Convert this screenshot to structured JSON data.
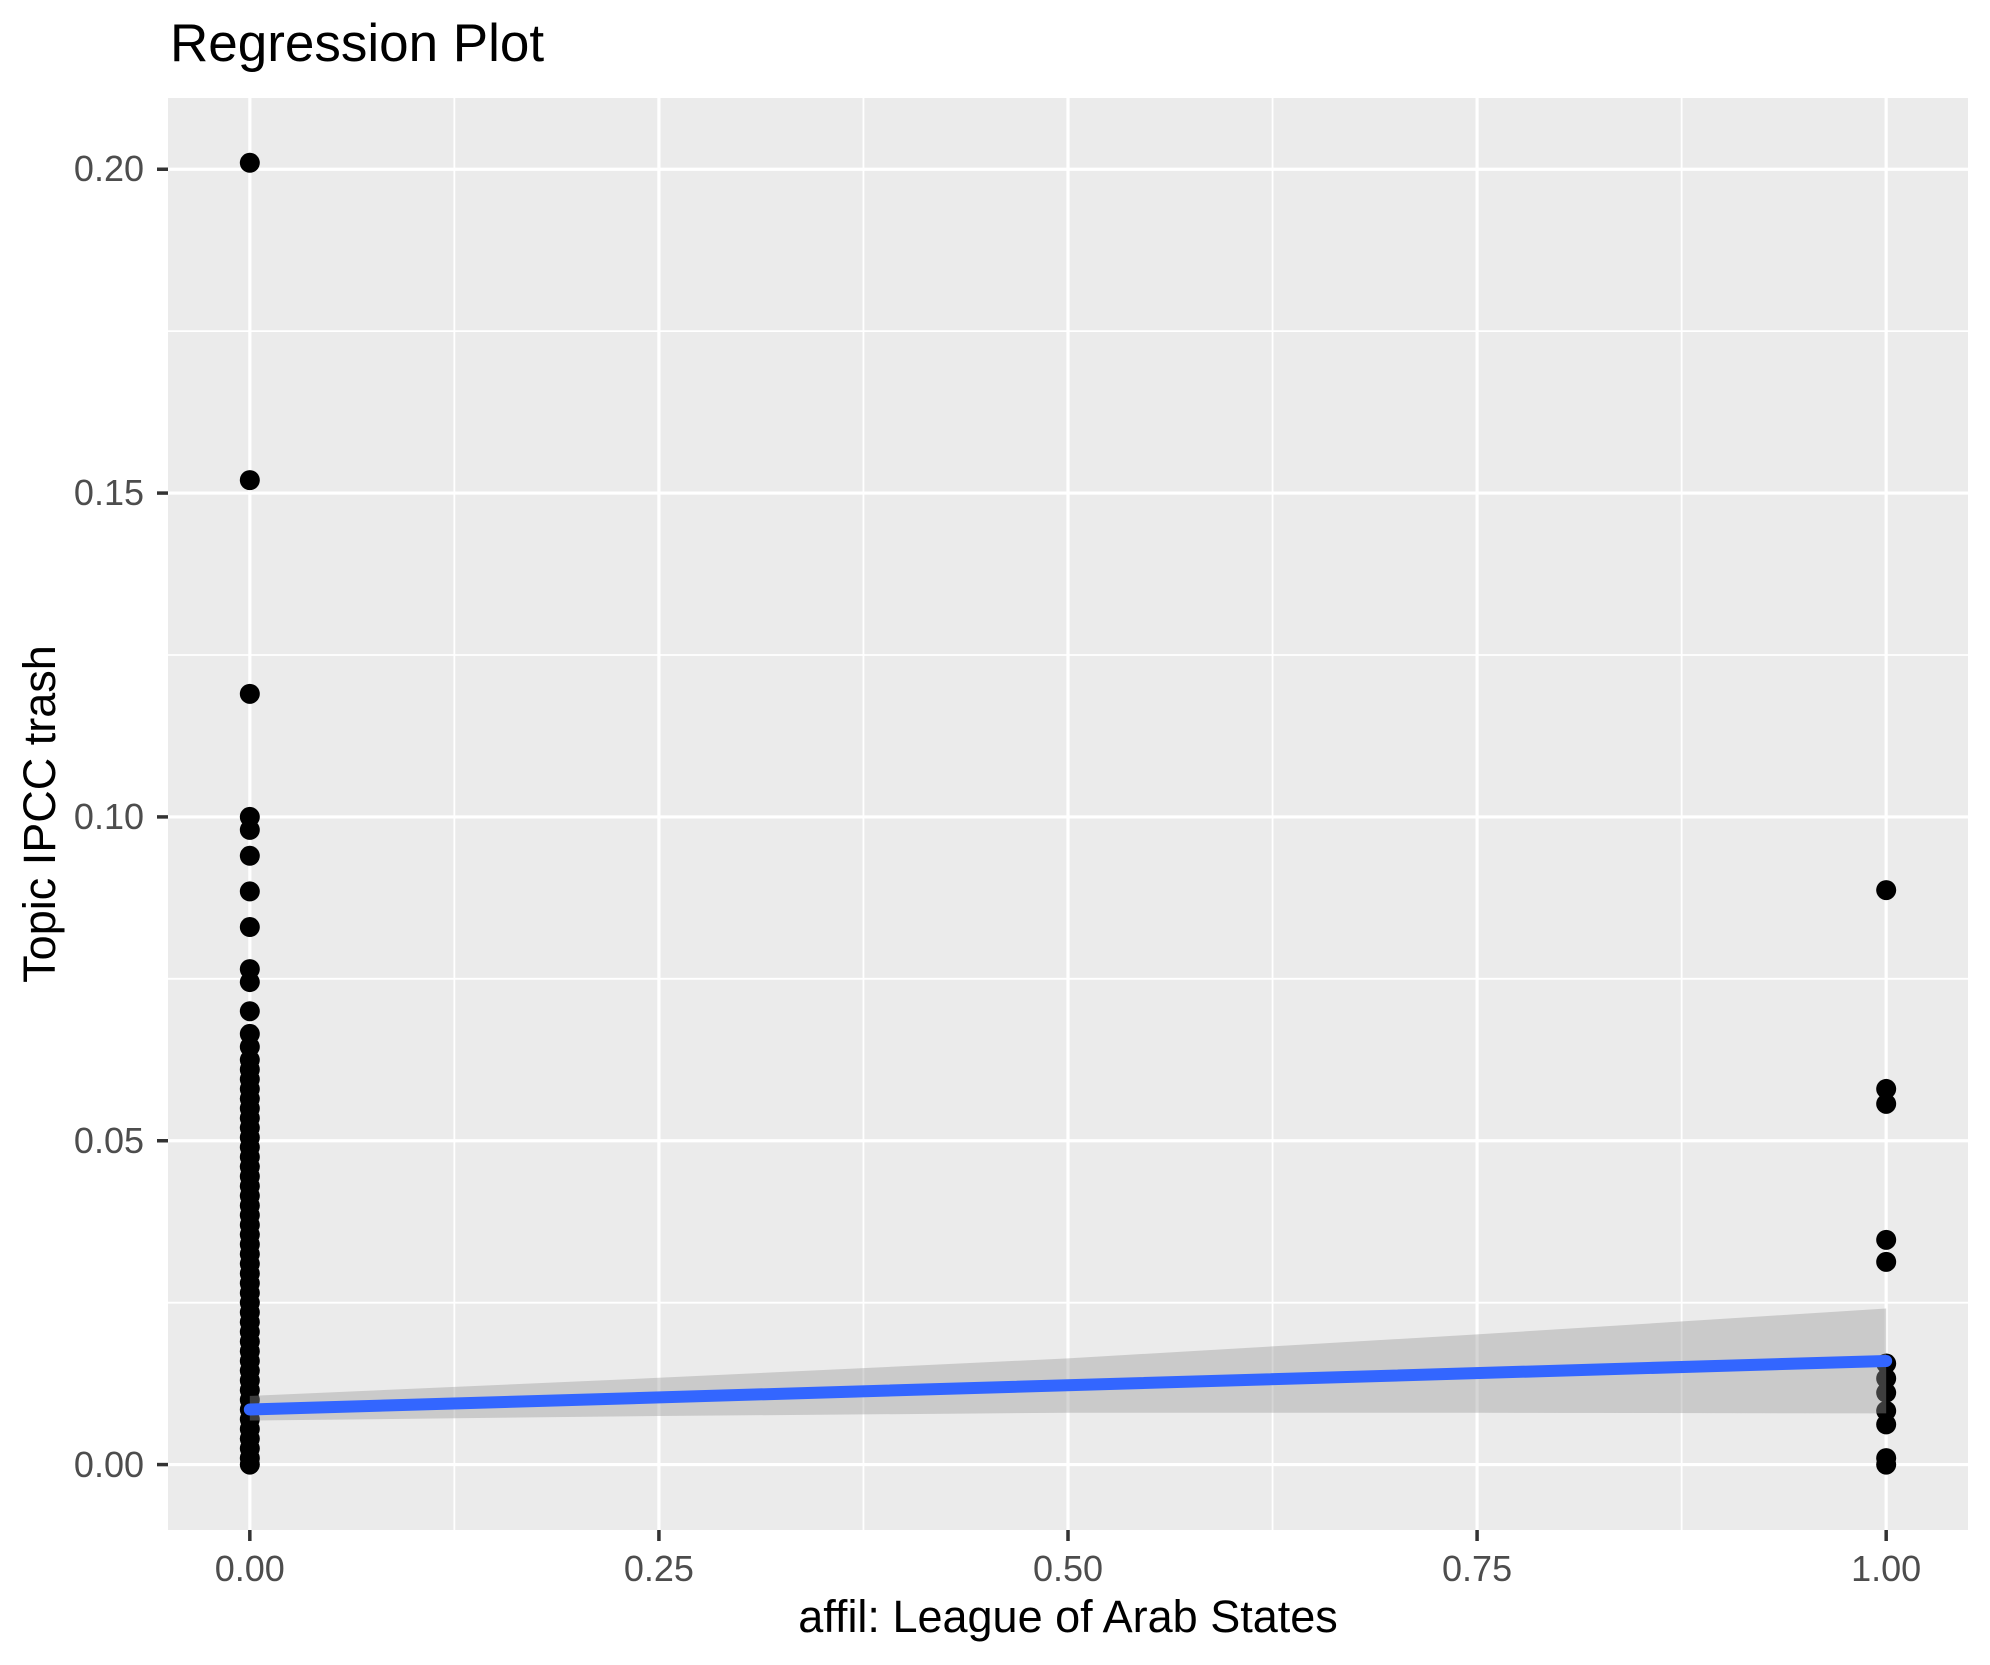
{
  "chart_data": {
    "type": "scatter",
    "title": "Regression Plot",
    "xlabel": "affil: League of Arab States",
    "ylabel": "Topic IPCC trash",
    "x_ticks": [
      "0.00",
      "0.25",
      "0.50",
      "0.75",
      "1.00"
    ],
    "x_tick_values": [
      0,
      0.25,
      0.5,
      0.75,
      1
    ],
    "y_ticks": [
      "0.00",
      "0.05",
      "0.10",
      "0.15",
      "0.20"
    ],
    "y_tick_values": [
      0,
      0.05,
      0.1,
      0.15,
      0.2
    ],
    "x_minor": [
      0.125,
      0.375,
      0.625,
      0.875
    ],
    "y_minor": [
      0.025,
      0.075,
      0.125,
      0.175
    ],
    "xlim": [
      -0.05,
      1.05
    ],
    "ylim": [
      -0.0101,
      0.211
    ],
    "grid": true,
    "legend": false,
    "series": [
      {
        "name": "affil = 0",
        "x": 0,
        "y": [
          0.201,
          0.152,
          0.119,
          0.1,
          0.098,
          0.094,
          0.0885,
          0.083,
          0.0765,
          0.0745,
          0.07,
          0.0665,
          0.0645,
          0.0625,
          0.061,
          0.0595,
          0.058,
          0.0565,
          0.055,
          0.0535,
          0.052,
          0.0505,
          0.049,
          0.0475,
          0.046,
          0.0445,
          0.043,
          0.0415,
          0.04,
          0.0385,
          0.037,
          0.0355,
          0.034,
          0.0325,
          0.031,
          0.0295,
          0.028,
          0.0265,
          0.025,
          0.0235,
          0.022,
          0.0205,
          0.019,
          0.0175,
          0.016,
          0.0145,
          0.013,
          0.0115,
          0.01,
          0.0085,
          0.007,
          0.0055,
          0.004,
          0.0025,
          0.001,
          0
        ]
      },
      {
        "name": "affil = 1",
        "x": 1,
        "y": [
          0.0887,
          0.058,
          0.0557,
          0.0347,
          0.0313,
          0.0156,
          0.0133,
          0.0111,
          0.0083,
          0.0062,
          0.001,
          0
        ]
      }
    ],
    "regression_line": {
      "x": [
        0,
        1
      ],
      "y": [
        0.0085,
        0.016
      ]
    },
    "confidence_band": {
      "x": [
        0,
        0.25,
        0.5,
        0.75,
        1
      ],
      "upper": [
        0.0106,
        0.0134,
        0.0164,
        0.0201,
        0.0241
      ],
      "lower": [
        0.0068,
        0.0075,
        0.008,
        0.008,
        0.0079
      ]
    },
    "colors": {
      "background": "#FFFFFF",
      "panel_bg": "#EBEBEB",
      "grid": "#FFFFFF",
      "point": "#000000",
      "regression_line": "#3366FF",
      "ribbon": "#999999",
      "ribbon_opacity": 0.4,
      "tick_label": "#4D4D4D",
      "tick_mark": "#333333",
      "title": "#000000",
      "axis_title": "#000000"
    }
  }
}
